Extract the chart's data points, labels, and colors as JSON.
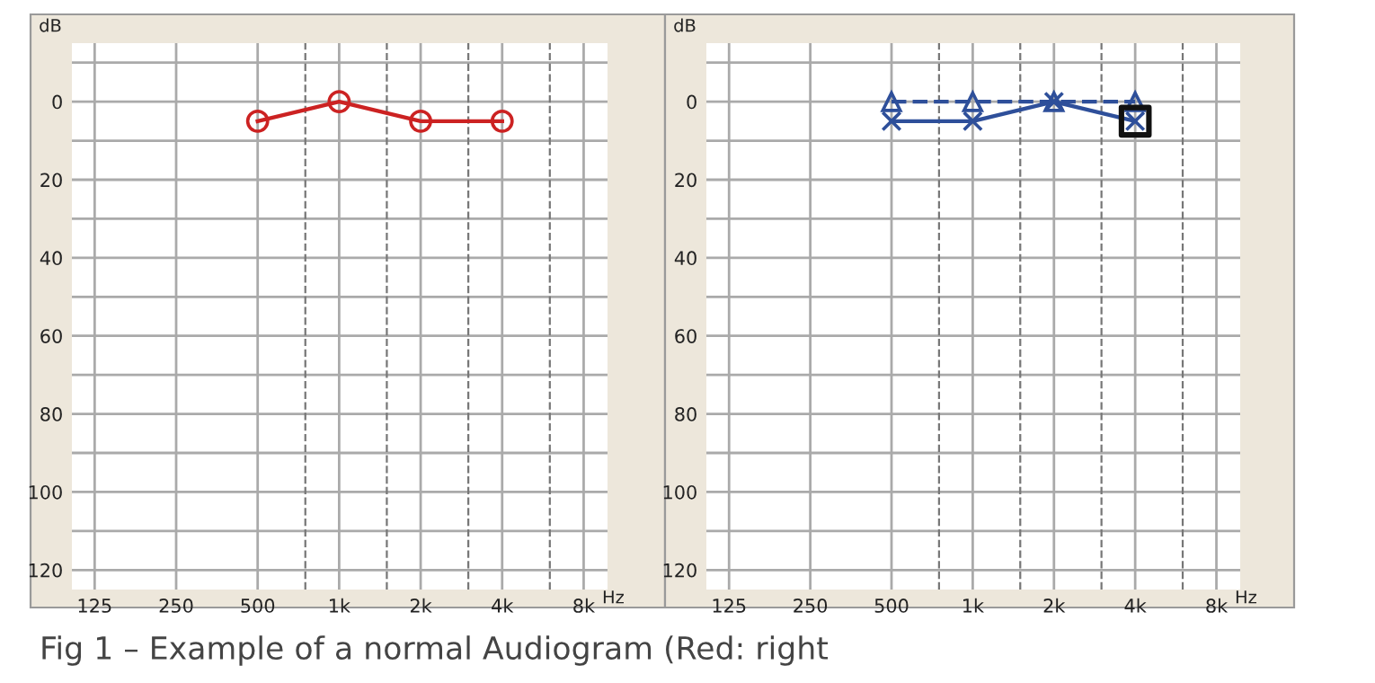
{
  "chart_data": [
    {
      "type": "line",
      "xlabel": "Hz",
      "ylabel": "dB",
      "log": "x",
      "grid": true,
      "xlim": [
        103,
        9800
      ],
      "ylim": [
        125,
        -15
      ],
      "xticks": [
        125,
        250,
        500,
        {
          "value": 1000,
          "label": "1k"
        },
        {
          "value": 2000,
          "label": "2k"
        },
        {
          "value": 4000,
          "label": "4k"
        },
        {
          "value": 8000,
          "label": "8k"
        }
      ],
      "yticks": [
        {
          "value": -10,
          "label": null
        },
        0,
        {
          "value": 10,
          "label": null
        },
        20,
        {
          "value": 30,
          "label": null
        },
        40,
        {
          "value": 50,
          "label": null
        },
        60,
        {
          "value": 70,
          "label": null
        },
        80,
        {
          "value": 90,
          "label": null
        },
        100,
        {
          "value": 110,
          "label": null
        },
        120
      ],
      "ref_lines": [
        {
          "axis": "x",
          "value": 750,
          "line_style": "dashed",
          "color": "#777777"
        },
        {
          "axis": "x",
          "value": 1500,
          "line_style": "dashed",
          "color": "#777777"
        },
        {
          "axis": "x",
          "value": 3000,
          "line_style": "dashed",
          "color": "#777777"
        },
        {
          "axis": "x",
          "value": 6000,
          "line_style": "dashed",
          "color": "#777777"
        }
      ],
      "series": [
        {
          "color": "#cc2222",
          "marker": "circle",
          "line_style": "solid",
          "x": [
            500,
            1000,
            2000,
            4000
          ],
          "values": [
            5,
            0,
            5,
            5
          ]
        }
      ],
      "annotations": [
        "Fig 1 – Example of a normal Audiogram (Red: right"
      ]
    },
    {
      "type": "line",
      "xlabel": "Hz",
      "ylabel": "dB",
      "log": "x",
      "grid": true,
      "xlim": [
        103,
        9800
      ],
      "ylim": [
        125,
        -15
      ],
      "xticks": [
        125,
        250,
        500,
        {
          "value": 1000,
          "label": "1k"
        },
        {
          "value": 2000,
          "label": "2k"
        },
        {
          "value": 4000,
          "label": "4k"
        },
        {
          "value": 8000,
          "label": "8k"
        }
      ],
      "yticks": [
        {
          "value": -10,
          "label": null
        },
        0,
        {
          "value": 10,
          "label": null
        },
        20,
        {
          "value": 30,
          "label": null
        },
        40,
        {
          "value": 50,
          "label": null
        },
        60,
        {
          "value": 70,
          "label": null
        },
        80,
        {
          "value": 90,
          "label": null
        },
        100,
        {
          "value": 110,
          "label": null
        },
        120
      ],
      "ref_lines": [
        {
          "axis": "x",
          "value": 750,
          "line_style": "dashed",
          "color": "#777777"
        },
        {
          "axis": "x",
          "value": 1500,
          "line_style": "dashed",
          "color": "#777777"
        },
        {
          "axis": "x",
          "value": 3000,
          "line_style": "dashed",
          "color": "#777777"
        },
        {
          "axis": "x",
          "value": 6000,
          "line_style": "dashed",
          "color": "#777777"
        }
      ],
      "series": [
        {
          "color": "#2e4f9a",
          "marker": "triangle",
          "line_style": "dashed",
          "x": [
            500,
            1000,
            2000,
            4000
          ],
          "values": [
            0,
            0,
            0,
            0
          ]
        },
        {
          "color": "#2e4f9a",
          "marker": "cross",
          "line_style": "solid",
          "x": [
            500,
            1000,
            2000,
            4000
          ],
          "values": [
            5,
            5,
            0,
            5
          ]
        },
        {
          "type": "scatter",
          "color": "#111111",
          "marker": "square",
          "x": [
            4000
          ],
          "values": [
            5
          ]
        }
      ]
    }
  ]
}
